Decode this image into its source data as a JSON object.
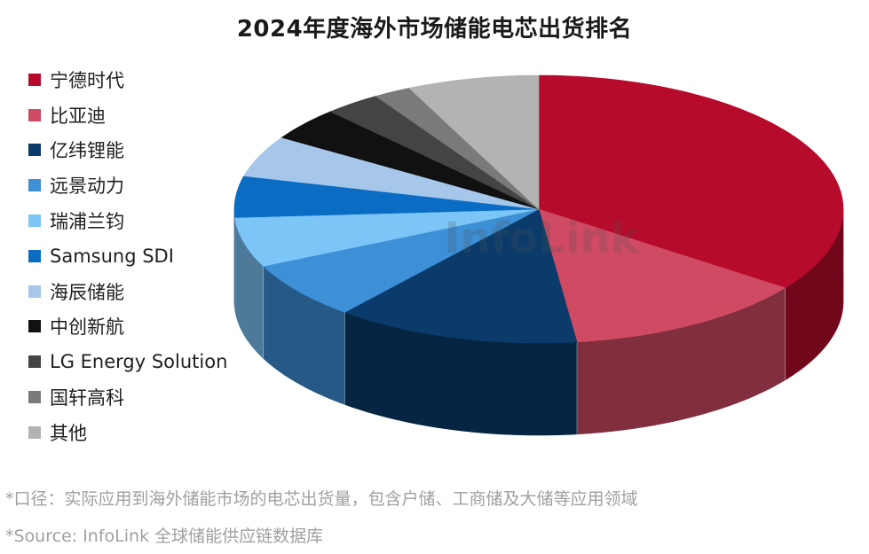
{
  "chart_data": {
    "type": "pie",
    "title": "2024年度海外市场储能电芯出货排名",
    "watermark": "InfoLink",
    "slices": [
      {
        "name": "宁德时代",
        "value": 35.0,
        "color": "#b60b2b"
      },
      {
        "name": "比亚迪",
        "value": 13.0,
        "color": "#d04a64"
      },
      {
        "name": "亿纬锂能",
        "value": 13.0,
        "color": "#0a3b6b"
      },
      {
        "name": "远景动力",
        "value": 7.0,
        "color": "#3d8fd6"
      },
      {
        "name": "瑞浦兰钧",
        "value": 6.0,
        "color": "#7cc5f7"
      },
      {
        "name": "Samsung SDI",
        "value": 5.0,
        "color": "#0b6cc4"
      },
      {
        "name": "海辰储能",
        "value": 5.0,
        "color": "#a6c7ea"
      },
      {
        "name": "中创新航",
        "value": 4.0,
        "color": "#111111"
      },
      {
        "name": "LG Energy Solution",
        "value": 3.0,
        "color": "#444444"
      },
      {
        "name": "国轩高科",
        "value": 2.0,
        "color": "#7a7a7a"
      },
      {
        "name": "其他",
        "value": 7.0,
        "color": "#b3b3b3"
      }
    ],
    "legend_position": "left"
  },
  "footnotes": {
    "scope": "*口径：实际应用到海外储能市场的电芯出货量，包含户储、工商储及大储等应用领域",
    "source": "*Source: InfoLink 全球储能供应链数据库"
  }
}
